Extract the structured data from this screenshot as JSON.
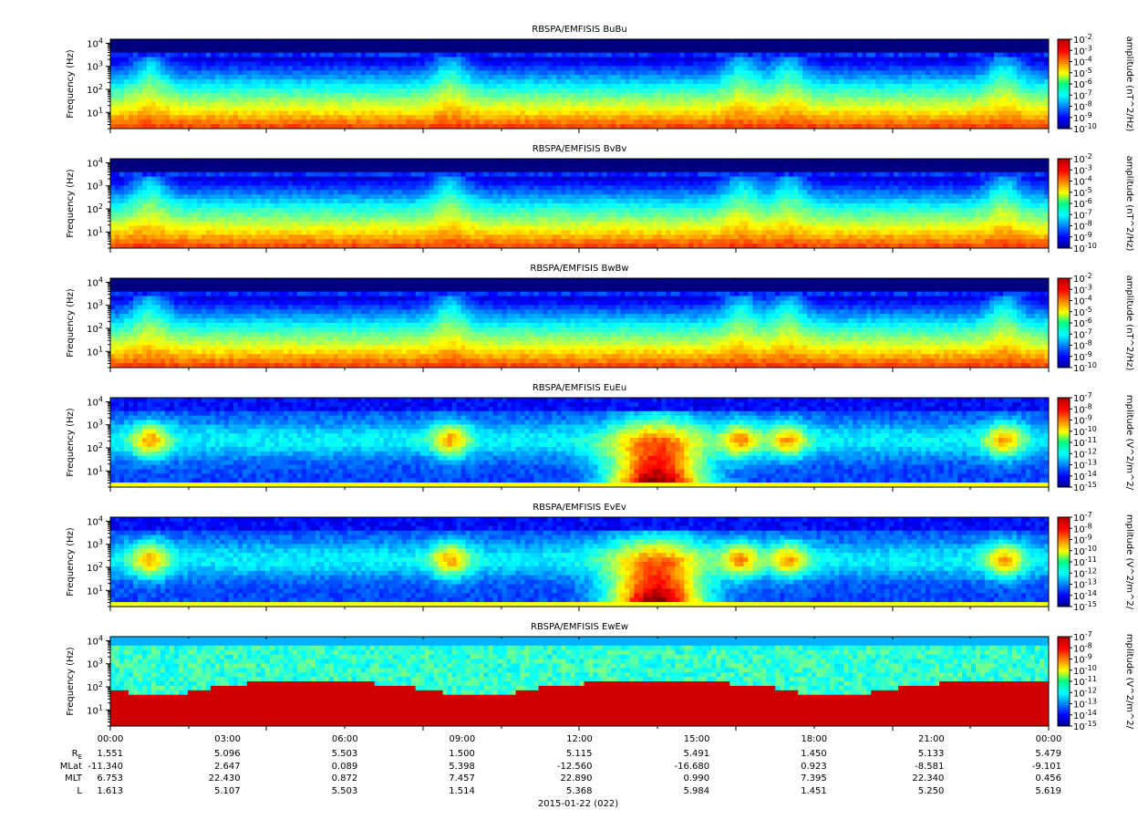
{
  "figure": {
    "date_label": "2015-01-22 (022)",
    "ephemeris": {
      "row_labels": [
        {
          "base": "R",
          "sub": "E"
        },
        {
          "base": "MLat",
          "sub": ""
        },
        {
          "base": "MLT",
          "sub": ""
        },
        {
          "base": "L",
          "sub": ""
        }
      ],
      "rows": [
        [
          "1.551",
          "5.096",
          "5.503",
          "1.500",
          "5.115",
          "5.491",
          "1.450",
          "5.133",
          "5.479"
        ],
        [
          "-11.340",
          "2.647",
          "0.089",
          "5.398",
          "-12.560",
          "-16.680",
          "0.923",
          "-8.581",
          "-9.101"
        ],
        [
          "6.753",
          "22.430",
          "0.872",
          "7.457",
          "22.890",
          "0.990",
          "7.395",
          "22.340",
          "0.456"
        ],
        [
          "1.613",
          "5.107",
          "5.503",
          "1.514",
          "5.368",
          "5.984",
          "1.451",
          "5.250",
          "5.619"
        ]
      ]
    }
  },
  "chart_data": [
    {
      "type": "heatmap",
      "title": "RBSPA/EMFISIS  BuBu",
      "ylabel": "Frequency (Hz)",
      "yscale": "log",
      "ylim": [
        2,
        15000
      ],
      "y_ticks": [
        {
          "base": "10",
          "exp": "1"
        },
        {
          "base": "10",
          "exp": "2"
        },
        {
          "base": "10",
          "exp": "3"
        },
        {
          "base": "10",
          "exp": "4"
        }
      ],
      "x_ticks": [
        "00:00",
        "03:00",
        "06:00",
        "09:00",
        "12:00",
        "15:00",
        "18:00",
        "21:00",
        "00:00"
      ],
      "colorbar": {
        "label": "amplitude (nT^2/Hz)",
        "scale": "log",
        "range_exp": [
          -10,
          -2
        ],
        "tick_labels": [
          {
            "base": "10",
            "exp": "-2"
          },
          {
            "base": "10",
            "exp": "-3"
          },
          {
            "base": "10",
            "exp": "-4"
          },
          {
            "base": "10",
            "exp": "-5"
          },
          {
            "base": "10",
            "exp": "-6"
          },
          {
            "base": "10",
            "exp": "-7"
          },
          {
            "base": "10",
            "exp": "-8"
          },
          {
            "base": "10",
            "exp": "-9"
          },
          {
            "base": "10",
            "exp": "-10"
          }
        ]
      }
    },
    {
      "type": "heatmap",
      "title": "RBSPA/EMFISIS  BvBv",
      "ylabel": "Frequency (Hz)",
      "yscale": "log",
      "ylim": [
        2,
        15000
      ],
      "y_ticks": [
        {
          "base": "10",
          "exp": "1"
        },
        {
          "base": "10",
          "exp": "2"
        },
        {
          "base": "10",
          "exp": "3"
        },
        {
          "base": "10",
          "exp": "4"
        }
      ],
      "x_ticks": [
        "00:00",
        "03:00",
        "06:00",
        "09:00",
        "12:00",
        "15:00",
        "18:00",
        "21:00",
        "00:00"
      ],
      "colorbar": {
        "label": "amplitude (nT^2/Hz)",
        "scale": "log",
        "range_exp": [
          -10,
          -2
        ],
        "tick_labels": [
          {
            "base": "10",
            "exp": "-2"
          },
          {
            "base": "10",
            "exp": "-3"
          },
          {
            "base": "10",
            "exp": "-4"
          },
          {
            "base": "10",
            "exp": "-5"
          },
          {
            "base": "10",
            "exp": "-6"
          },
          {
            "base": "10",
            "exp": "-7"
          },
          {
            "base": "10",
            "exp": "-8"
          },
          {
            "base": "10",
            "exp": "-9"
          },
          {
            "base": "10",
            "exp": "-10"
          }
        ]
      }
    },
    {
      "type": "heatmap",
      "title": "RBSPA/EMFISIS  BwBw",
      "ylabel": "Frequency (Hz)",
      "yscale": "log",
      "ylim": [
        2,
        15000
      ],
      "y_ticks": [
        {
          "base": "10",
          "exp": "1"
        },
        {
          "base": "10",
          "exp": "2"
        },
        {
          "base": "10",
          "exp": "3"
        },
        {
          "base": "10",
          "exp": "4"
        }
      ],
      "x_ticks": [
        "00:00",
        "03:00",
        "06:00",
        "09:00",
        "12:00",
        "15:00",
        "18:00",
        "21:00",
        "00:00"
      ],
      "colorbar": {
        "label": "amplitude (nT^2/Hz)",
        "scale": "log",
        "range_exp": [
          -10,
          -2
        ],
        "tick_labels": [
          {
            "base": "10",
            "exp": "-2"
          },
          {
            "base": "10",
            "exp": "-3"
          },
          {
            "base": "10",
            "exp": "-4"
          },
          {
            "base": "10",
            "exp": "-5"
          },
          {
            "base": "10",
            "exp": "-6"
          },
          {
            "base": "10",
            "exp": "-7"
          },
          {
            "base": "10",
            "exp": "-8"
          },
          {
            "base": "10",
            "exp": "-9"
          },
          {
            "base": "10",
            "exp": "-10"
          }
        ]
      }
    },
    {
      "type": "heatmap",
      "title": "RBSPA/EMFISIS  EuEu",
      "ylabel": "Frequency (Hz)",
      "yscale": "log",
      "ylim": [
        2,
        15000
      ],
      "y_ticks": [
        {
          "base": "10",
          "exp": "1"
        },
        {
          "base": "10",
          "exp": "2"
        },
        {
          "base": "10",
          "exp": "3"
        },
        {
          "base": "10",
          "exp": "4"
        }
      ],
      "x_ticks": [
        "00:00",
        "03:00",
        "06:00",
        "09:00",
        "12:00",
        "15:00",
        "18:00",
        "21:00",
        "00:00"
      ],
      "colorbar": {
        "label": "mplitude (V^2/m^2/",
        "scale": "log",
        "range_exp": [
          -15,
          -7
        ],
        "tick_labels": [
          {
            "base": "10",
            "exp": "-7"
          },
          {
            "base": "10",
            "exp": "-8"
          },
          {
            "base": "10",
            "exp": "-9"
          },
          {
            "base": "10",
            "exp": "-10"
          },
          {
            "base": "10",
            "exp": "-11"
          },
          {
            "base": "10",
            "exp": "-12"
          },
          {
            "base": "10",
            "exp": "-13"
          },
          {
            "base": "10",
            "exp": "-14"
          },
          {
            "base": "10",
            "exp": "-15"
          }
        ]
      }
    },
    {
      "type": "heatmap",
      "title": "RBSPA/EMFISIS  EvEv",
      "ylabel": "Frequency (Hz)",
      "yscale": "log",
      "ylim": [
        2,
        15000
      ],
      "y_ticks": [
        {
          "base": "10",
          "exp": "1"
        },
        {
          "base": "10",
          "exp": "2"
        },
        {
          "base": "10",
          "exp": "3"
        },
        {
          "base": "10",
          "exp": "4"
        }
      ],
      "x_ticks": [
        "00:00",
        "03:00",
        "06:00",
        "09:00",
        "12:00",
        "15:00",
        "18:00",
        "21:00",
        "00:00"
      ],
      "colorbar": {
        "label": "mplitude (V^2/m^2/",
        "scale": "log",
        "range_exp": [
          -15,
          -7
        ],
        "tick_labels": [
          {
            "base": "10",
            "exp": "-7"
          },
          {
            "base": "10",
            "exp": "-8"
          },
          {
            "base": "10",
            "exp": "-9"
          },
          {
            "base": "10",
            "exp": "-10"
          },
          {
            "base": "10",
            "exp": "-11"
          },
          {
            "base": "10",
            "exp": "-12"
          },
          {
            "base": "10",
            "exp": "-13"
          },
          {
            "base": "10",
            "exp": "-14"
          },
          {
            "base": "10",
            "exp": "-15"
          }
        ]
      }
    },
    {
      "type": "heatmap",
      "title": "RBSPA/EMFISIS  EwEw",
      "ylabel": "Frequency (Hz)",
      "yscale": "log",
      "ylim": [
        2,
        15000
      ],
      "y_ticks": [
        {
          "base": "10",
          "exp": "1"
        },
        {
          "base": "10",
          "exp": "2"
        },
        {
          "base": "10",
          "exp": "3"
        },
        {
          "base": "10",
          "exp": "4"
        }
      ],
      "x_ticks": [
        "00:00",
        "03:00",
        "06:00",
        "09:00",
        "12:00",
        "15:00",
        "18:00",
        "21:00",
        "00:00"
      ],
      "colorbar": {
        "label": "mplitude (V^2/m^2/",
        "scale": "log",
        "range_exp": [
          -15,
          -7
        ],
        "tick_labels": [
          {
            "base": "10",
            "exp": "-7"
          },
          {
            "base": "10",
            "exp": "-8"
          },
          {
            "base": "10",
            "exp": "-9"
          },
          {
            "base": "10",
            "exp": "-10"
          },
          {
            "base": "10",
            "exp": "-11"
          },
          {
            "base": "10",
            "exp": "-12"
          },
          {
            "base": "10",
            "exp": "-13"
          },
          {
            "base": "10",
            "exp": "-14"
          },
          {
            "base": "10",
            "exp": "-15"
          }
        ]
      }
    }
  ]
}
